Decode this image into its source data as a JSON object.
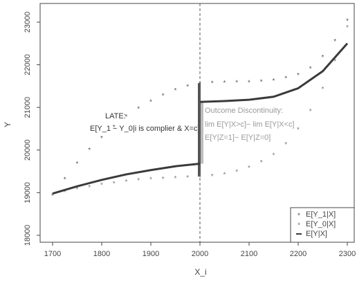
{
  "chart_data": {
    "type": "line",
    "xlabel": "X_i",
    "ylabel": "Y",
    "x": [
      1700,
      1725,
      1750,
      1775,
      1800,
      1825,
      1850,
      1875,
      1900,
      1925,
      1950,
      1975,
      2000,
      2025,
      2050,
      2075,
      2100,
      2125,
      2150,
      2175,
      2200,
      2225,
      2250,
      2275,
      2300
    ],
    "series": [
      {
        "name": "E[Y_1|X]",
        "style": "points",
        "color": "#555555",
        "values": [
          18950,
          19330,
          19700,
          20020,
          20300,
          20560,
          20800,
          20990,
          21150,
          21300,
          21420,
          21510,
          21570,
          21590,
          21600,
          21605,
          21610,
          21625,
          21650,
          21700,
          21780,
          21930,
          22200,
          22570,
          23050
        ]
      },
      {
        "name": "E[Y_0|X]",
        "style": "points",
        "color": "#777777",
        "values": [
          18950,
          19030,
          19100,
          19150,
          19200,
          19240,
          19280,
          19310,
          19330,
          19345,
          19360,
          19370,
          19380,
          19410,
          19450,
          19510,
          19600,
          19730,
          19900,
          20150,
          20500,
          20930,
          21450,
          22100,
          22900
        ]
      },
      {
        "name": "E[Y|X]",
        "style": "line",
        "color": "#3a3a3a",
        "x": [
          1700,
          1750,
          1800,
          1850,
          1900,
          1950,
          2000,
          2000,
          2000,
          2050,
          2100,
          2150,
          2200,
          2250,
          2300
        ],
        "values": [
          18980,
          19150,
          19300,
          19430,
          19530,
          19620,
          19680,
          null,
          21130,
          21150,
          21180,
          21250,
          21450,
          21850,
          22500
        ]
      }
    ],
    "vline": 2000,
    "intervals": [
      {
        "x": 2000,
        "low": 19380,
        "high": 21570,
        "color": "#555555"
      },
      {
        "x": 2000,
        "low": 19680,
        "high": 21130,
        "color": "#bdbdbd"
      }
    ],
    "annotations": [
      "LATE:",
      "E[Y_1 − Y_0|i is complier & X=c]",
      "Outcome Discontinuity:",
      "lim E[Y|X>c]− lim E[Y|X<c]",
      "E[Y|Z=1]− E[Y|Z=0]"
    ],
    "xlim": [
      1700,
      2300
    ],
    "ylim": [
      18000,
      23000
    ],
    "xticks": [
      1700,
      1800,
      1900,
      2000,
      2100,
      2200,
      2300
    ],
    "yticks": [
      18000,
      19000,
      20000,
      21000,
      22000,
      23000
    ],
    "legend": "bottom-right"
  }
}
